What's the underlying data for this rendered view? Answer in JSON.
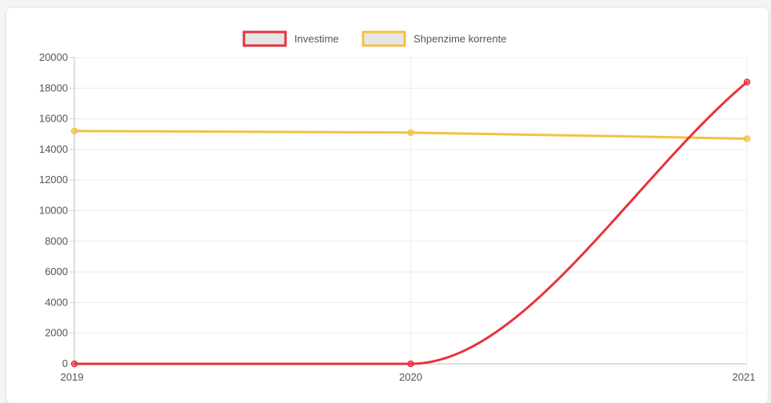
{
  "chart_data": {
    "type": "line",
    "categories": [
      "2019",
      "2020",
      "2021"
    ],
    "series": [
      {
        "name": "Investime",
        "values": [
          0,
          0,
          18400
        ],
        "color": "#e8323c",
        "legend_fill": "#e6e6e6"
      },
      {
        "name": "Shpenzime korrente",
        "values": [
          15200,
          15100,
          14700
        ],
        "color": "#f5c143",
        "legend_fill": "#e6e6e6"
      }
    ],
    "yticks": [
      "0",
      "2000",
      "4000",
      "6000",
      "8000",
      "10000",
      "12000",
      "14000",
      "16000",
      "18000",
      "20000"
    ],
    "ylim": [
      0,
      20000
    ],
    "grid": true,
    "legend_position": "top-center",
    "title": "",
    "xlabel": "",
    "ylabel": ""
  }
}
